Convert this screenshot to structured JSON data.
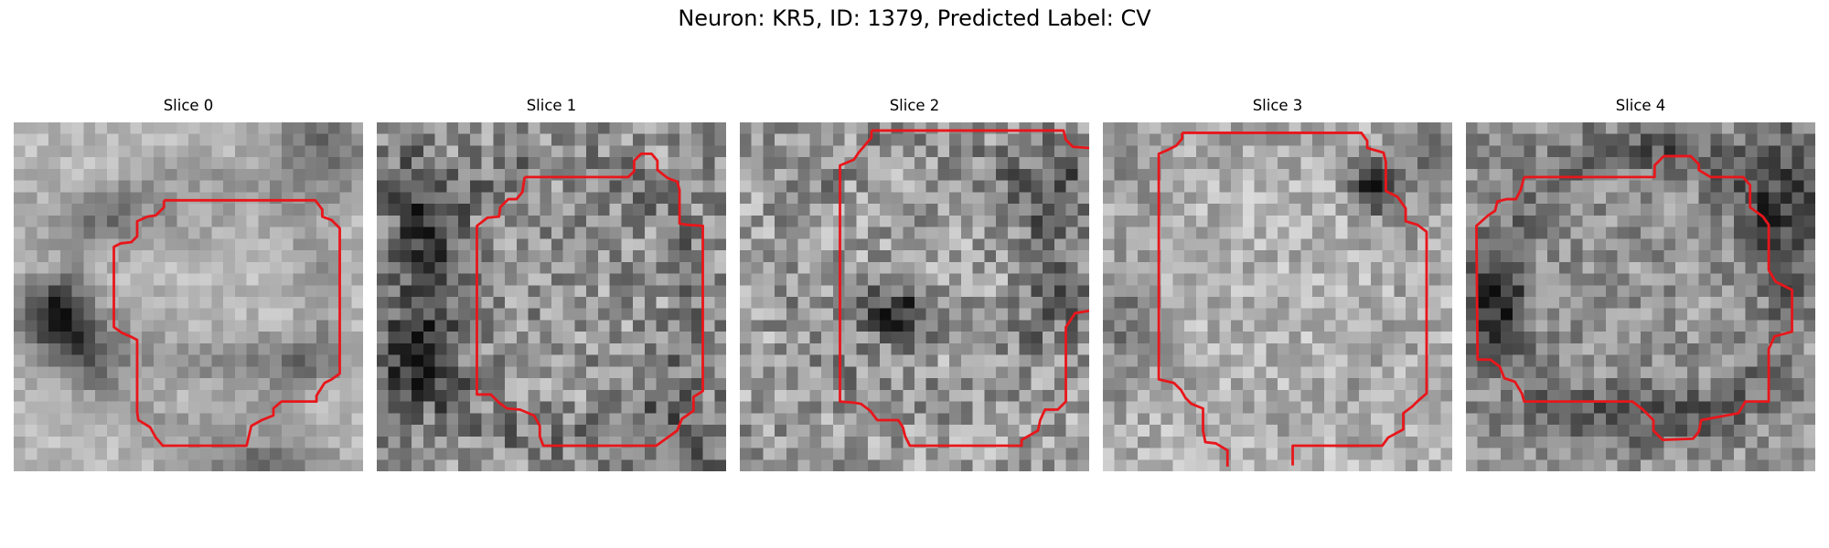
{
  "figure": {
    "title": "Neuron: KR5, ID: 1379, Predicted Label: CV"
  },
  "slices": [
    {
      "title": "Slice 0"
    },
    {
      "title": "Slice 1"
    },
    {
      "title": "Slice 2"
    },
    {
      "title": "Slice 3"
    },
    {
      "title": "Slice 4"
    }
  ],
  "colors": {
    "contour": "#e8161b",
    "background": "#ffffff"
  }
}
